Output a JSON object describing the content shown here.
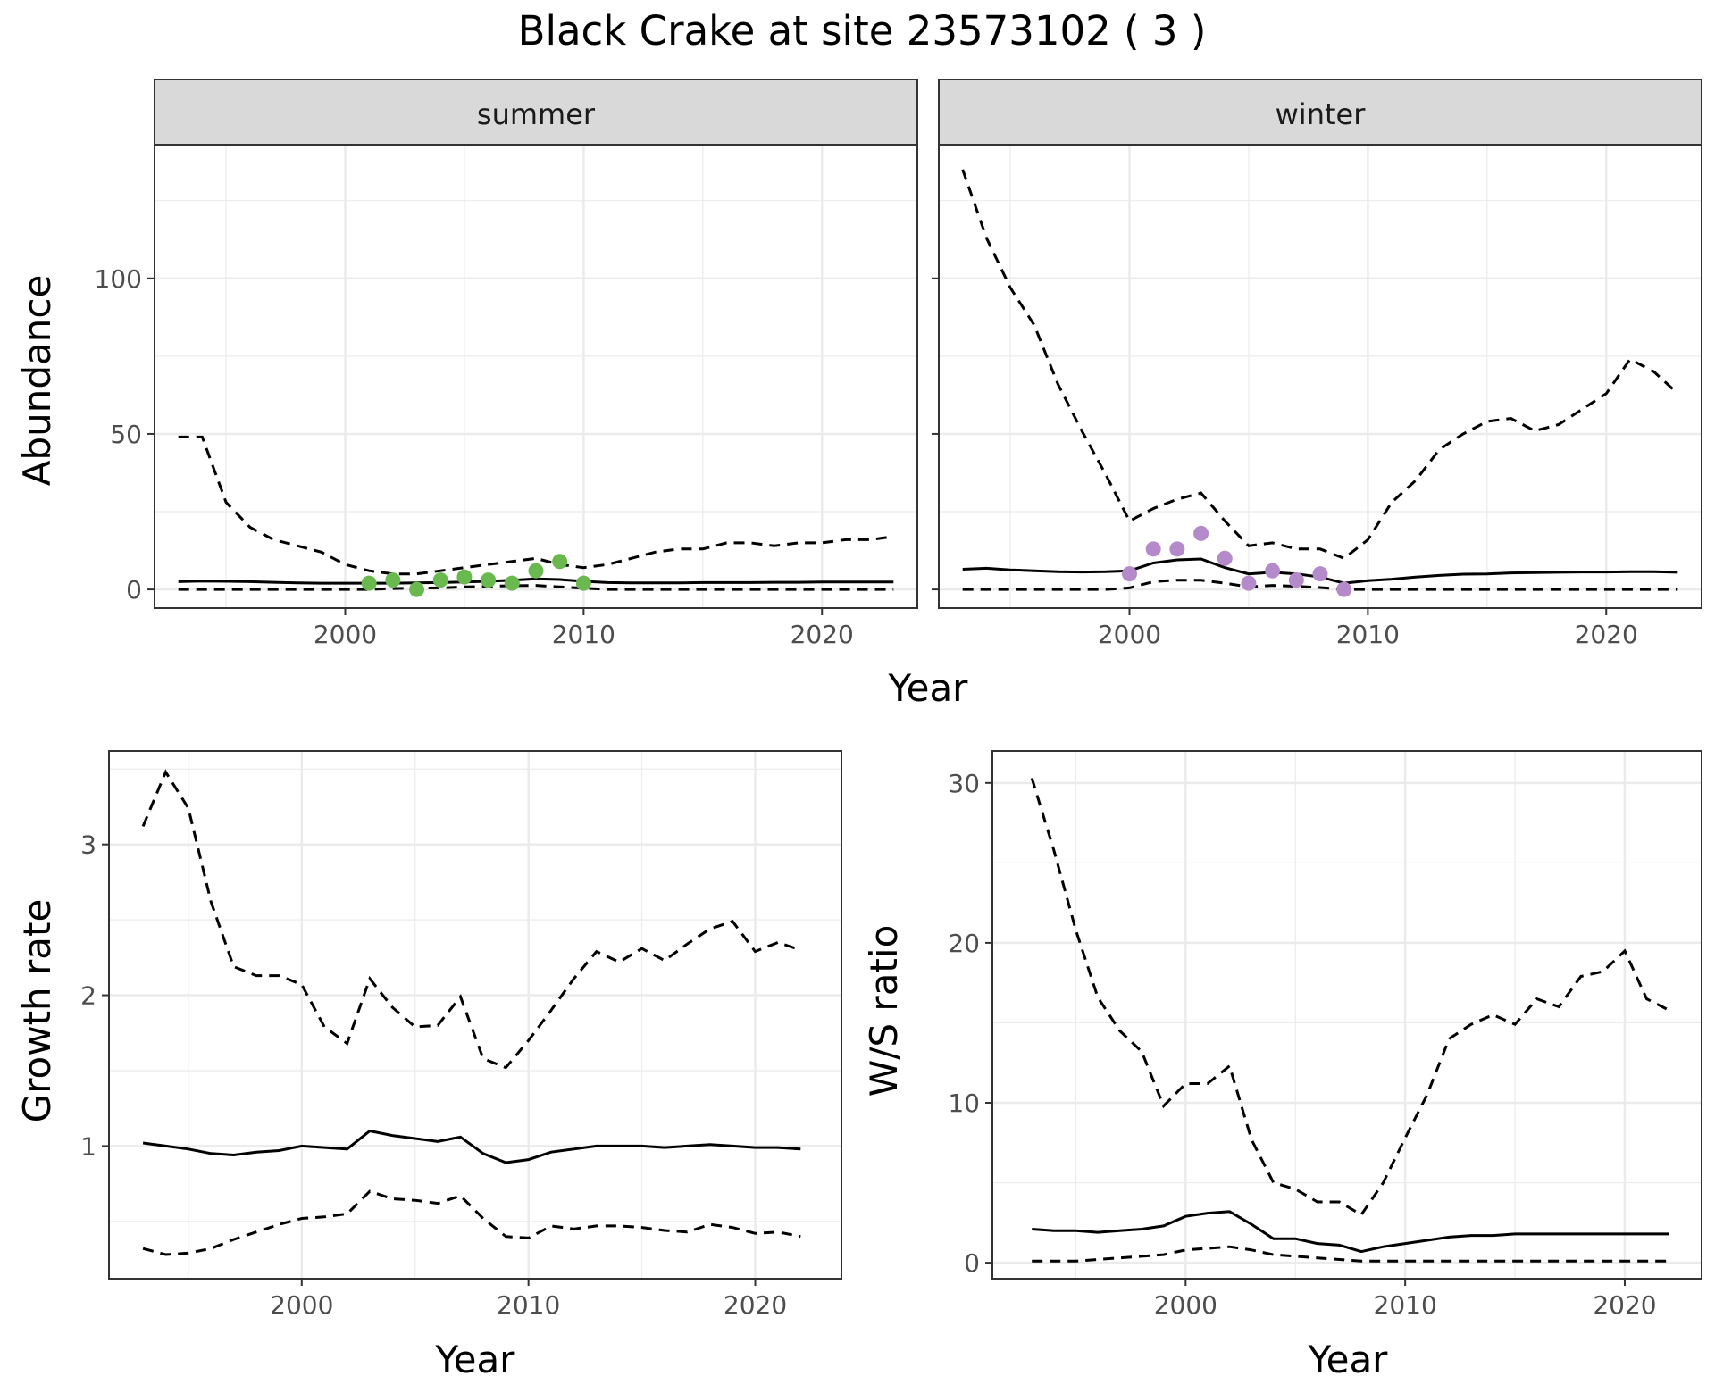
{
  "title": "Black Crake at site 23573102 ( 3 )",
  "colors": {
    "summer_points": "#6ab94f",
    "winter_points": "#b48acb",
    "lines": "#000000",
    "grid": "#ebebeb",
    "strip": "#d9d9d9"
  },
  "chart_data": [
    {
      "id": "abundance",
      "type": "line",
      "facets": [
        "summer",
        "winter"
      ],
      "xlabel": "Year",
      "ylabel": "Abundance",
      "xlim": [
        1992,
        2024
      ],
      "ylim": [
        -6,
        143
      ],
      "xticks": [
        2000,
        2010,
        2020
      ],
      "yticks": [
        0,
        50,
        100
      ],
      "panels": [
        {
          "facet": "summer",
          "x": [
            1993,
            1994,
            1995,
            1996,
            1997,
            1998,
            1999,
            2000,
            2001,
            2002,
            2003,
            2004,
            2005,
            2006,
            2007,
            2008,
            2009,
            2010,
            2011,
            2012,
            2013,
            2014,
            2015,
            2016,
            2017,
            2018,
            2019,
            2020,
            2021,
            2022,
            2023
          ],
          "mean": [
            2.5,
            2.7,
            2.6,
            2.5,
            2.3,
            2.1,
            2.0,
            2.0,
            2.0,
            2.0,
            2.1,
            2.2,
            2.4,
            2.6,
            3.0,
            3.4,
            3.2,
            2.6,
            2.2,
            2.1,
            2.1,
            2.1,
            2.2,
            2.2,
            2.2,
            2.3,
            2.3,
            2.4,
            2.4,
            2.4,
            2.4
          ],
          "upper": [
            49,
            49,
            28,
            20,
            16,
            14,
            12,
            8,
            6,
            5,
            5,
            6,
            7,
            8,
            9,
            10,
            8,
            7,
            8,
            10,
            12,
            13,
            13,
            15,
            15,
            14,
            15,
            15,
            16,
            16,
            17
          ],
          "lower": [
            0,
            0,
            0,
            0,
            0,
            0,
            0,
            0,
            0,
            0.3,
            0.4,
            0.5,
            0.8,
            1.0,
            1.2,
            1.3,
            0.8,
            0.4,
            0,
            0,
            0,
            0,
            0,
            0,
            0,
            0,
            0,
            0,
            0,
            0,
            0
          ],
          "points": {
            "x": [
              2001,
              2002,
              2003,
              2004,
              2005,
              2006,
              2007,
              2008,
              2009,
              2010
            ],
            "y": [
              2,
              3,
              0,
              3,
              4,
              3,
              2,
              6,
              9,
              2
            ]
          }
        },
        {
          "facet": "winter",
          "x": [
            1993,
            1994,
            1995,
            1996,
            1997,
            1998,
            1999,
            2000,
            2001,
            2002,
            2003,
            2004,
            2005,
            2006,
            2007,
            2008,
            2009,
            2010,
            2011,
            2012,
            2013,
            2014,
            2015,
            2016,
            2017,
            2018,
            2019,
            2020,
            2021,
            2022,
            2023
          ],
          "mean": [
            6.5,
            6.8,
            6.3,
            6.0,
            5.7,
            5.6,
            5.7,
            6.0,
            8.5,
            9.5,
            9.8,
            7.0,
            5.0,
            5.5,
            5.0,
            4.0,
            2.0,
            2.8,
            3.3,
            4.0,
            4.5,
            4.9,
            5.0,
            5.3,
            5.4,
            5.5,
            5.6,
            5.6,
            5.7,
            5.7,
            5.5
          ],
          "upper": [
            135,
            113,
            97,
            85,
            66,
            51,
            37,
            22,
            26,
            29,
            31,
            22,
            14,
            15,
            13,
            13,
            10,
            16,
            28,
            35,
            45,
            50,
            54,
            55,
            51,
            53,
            58,
            63,
            74,
            70,
            63
          ],
          "lower": [
            0,
            0,
            0,
            0,
            0,
            0,
            0,
            0.5,
            2.5,
            3.0,
            3.0,
            2.0,
            0.8,
            1.3,
            1.0,
            0.6,
            0,
            0,
            0,
            0,
            0,
            0,
            0,
            0,
            0,
            0,
            0,
            0,
            0,
            0,
            0
          ],
          "points": {
            "x": [
              2000,
              2001,
              2002,
              2003,
              2004,
              2005,
              2006,
              2007,
              2008,
              2009
            ],
            "y": [
              5,
              13,
              13,
              18,
              10,
              2,
              6,
              3,
              5,
              0
            ]
          }
        }
      ]
    },
    {
      "id": "growth",
      "type": "line",
      "xlabel": "Year",
      "ylabel": "Growth rate",
      "xlim": [
        1991.5,
        2023.8
      ],
      "ylim": [
        0.12,
        3.62
      ],
      "xticks": [
        2000,
        2010,
        2020
      ],
      "yticks": [
        1,
        2,
        3
      ],
      "x": [
        1993,
        1994,
        1995,
        1996,
        1997,
        1998,
        1999,
        2000,
        2001,
        2002,
        2003,
        2004,
        2005,
        2006,
        2007,
        2008,
        2009,
        2010,
        2011,
        2012,
        2013,
        2014,
        2015,
        2016,
        2017,
        2018,
        2019,
        2020,
        2021,
        2022
      ],
      "mean": [
        1.02,
        1.0,
        0.98,
        0.95,
        0.94,
        0.96,
        0.97,
        1.0,
        0.99,
        0.98,
        1.1,
        1.07,
        1.05,
        1.03,
        1.06,
        0.95,
        0.89,
        0.91,
        0.96,
        0.98,
        1.0,
        1.0,
        1.0,
        0.99,
        1.0,
        1.01,
        1.0,
        0.99,
        0.99,
        0.98
      ],
      "upper": [
        3.12,
        3.48,
        3.24,
        2.62,
        2.19,
        2.13,
        2.13,
        2.07,
        1.79,
        1.68,
        2.11,
        1.92,
        1.79,
        1.8,
        1.99,
        1.58,
        1.52,
        1.7,
        1.9,
        2.11,
        2.29,
        2.22,
        2.31,
        2.23,
        2.34,
        2.44,
        2.49,
        2.29,
        2.35,
        2.3
      ],
      "lower": [
        0.32,
        0.28,
        0.29,
        0.32,
        0.38,
        0.43,
        0.48,
        0.52,
        0.53,
        0.55,
        0.7,
        0.65,
        0.64,
        0.62,
        0.67,
        0.52,
        0.4,
        0.39,
        0.47,
        0.45,
        0.47,
        0.47,
        0.46,
        0.44,
        0.43,
        0.48,
        0.46,
        0.42,
        0.43,
        0.4
      ]
    },
    {
      "id": "ws_ratio",
      "type": "line",
      "xlabel": "Year",
      "ylabel": "W/S ratio",
      "xlim": [
        1991.2,
        2023.5
      ],
      "ylim": [
        -1,
        32
      ],
      "xticks": [
        2000,
        2010,
        2020
      ],
      "yticks": [
        0,
        10,
        20,
        30
      ],
      "x": [
        1993,
        1994,
        1995,
        1996,
        1997,
        1998,
        1999,
        2000,
        2001,
        2002,
        2003,
        2004,
        2005,
        2006,
        2007,
        2008,
        2009,
        2010,
        2011,
        2012,
        2013,
        2014,
        2015,
        2016,
        2017,
        2018,
        2019,
        2020,
        2021,
        2022
      ],
      "mean": [
        2.1,
        2.0,
        2.0,
        1.9,
        2.0,
        2.1,
        2.3,
        2.9,
        3.1,
        3.2,
        2.4,
        1.5,
        1.5,
        1.2,
        1.1,
        0.7,
        1.0,
        1.2,
        1.4,
        1.6,
        1.7,
        1.7,
        1.8,
        1.8,
        1.8,
        1.8,
        1.8,
        1.8,
        1.8,
        1.8
      ],
      "upper": [
        30.3,
        25.8,
        20.8,
        16.6,
        14.5,
        13.2,
        9.8,
        11.2,
        11.2,
        12.3,
        7.7,
        5.0,
        4.6,
        3.8,
        3.8,
        3.0,
        5.0,
        7.8,
        10.5,
        14.0,
        14.9,
        15.5,
        14.9,
        16.5,
        16.0,
        17.9,
        18.2,
        19.5,
        16.5,
        15.8
      ],
      "lower": [
        0.1,
        0.1,
        0.1,
        0.2,
        0.3,
        0.4,
        0.5,
        0.8,
        0.9,
        1.0,
        0.8,
        0.5,
        0.4,
        0.3,
        0.2,
        0.1,
        0.1,
        0.1,
        0.1,
        0.1,
        0.1,
        0.1,
        0.1,
        0.1,
        0.1,
        0.1,
        0.1,
        0.1,
        0.1,
        0.1
      ]
    }
  ]
}
